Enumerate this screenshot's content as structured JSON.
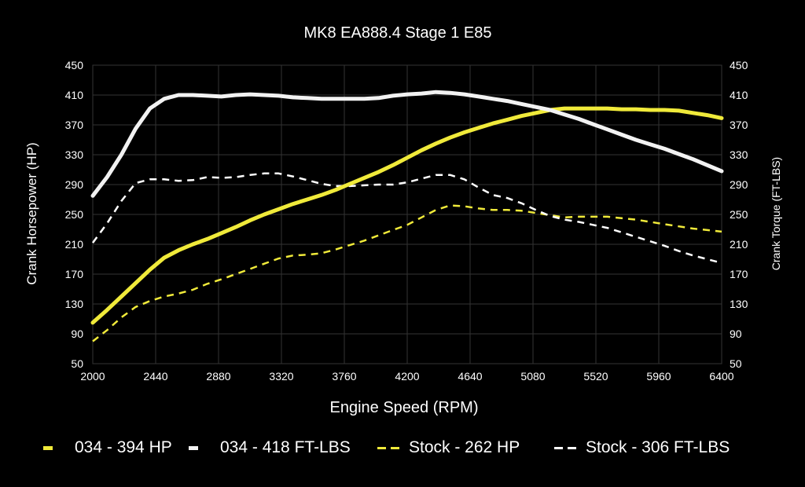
{
  "chart_data": {
    "type": "line",
    "title": "MK8 EA888.4 Stage 1 E85",
    "xlabel": "Engine Speed (RPM)",
    "ylabel": "Crank Horsepower (HP)",
    "y2label": "Crank Torque (FT-LBS)",
    "xlim": [
      2000,
      6400
    ],
    "ylim": [
      50,
      450
    ],
    "x_ticks": [
      2000,
      2440,
      2880,
      3320,
      3760,
      4200,
      4640,
      5080,
      5520,
      5960,
      6400
    ],
    "y_ticks": [
      50,
      90,
      130,
      170,
      210,
      250,
      290,
      330,
      370,
      410,
      450
    ],
    "grid": true,
    "legend_position": "bottom",
    "background": "#000000",
    "series": [
      {
        "name": "034 - 394 HP",
        "color": "#f0ea3a",
        "style": "solid",
        "width": 5,
        "points": [
          [
            2000,
            105
          ],
          [
            2100,
            122
          ],
          [
            2200,
            140
          ],
          [
            2300,
            158
          ],
          [
            2400,
            176
          ],
          [
            2500,
            192
          ],
          [
            2600,
            202
          ],
          [
            2700,
            210
          ],
          [
            2800,
            217
          ],
          [
            2900,
            225
          ],
          [
            3000,
            233
          ],
          [
            3100,
            242
          ],
          [
            3200,
            250
          ],
          [
            3300,
            257
          ],
          [
            3400,
            264
          ],
          [
            3500,
            270
          ],
          [
            3600,
            276
          ],
          [
            3700,
            283
          ],
          [
            3800,
            291
          ],
          [
            3900,
            299
          ],
          [
            4000,
            307
          ],
          [
            4100,
            316
          ],
          [
            4200,
            326
          ],
          [
            4300,
            336
          ],
          [
            4400,
            345
          ],
          [
            4500,
            353
          ],
          [
            4600,
            360
          ],
          [
            4700,
            366
          ],
          [
            4800,
            372
          ],
          [
            4900,
            377
          ],
          [
            5000,
            382
          ],
          [
            5100,
            386
          ],
          [
            5200,
            390
          ],
          [
            5300,
            392
          ],
          [
            5400,
            392
          ],
          [
            5500,
            392
          ],
          [
            5600,
            392
          ],
          [
            5700,
            391
          ],
          [
            5800,
            391
          ],
          [
            5900,
            390
          ],
          [
            6000,
            390
          ],
          [
            6100,
            389
          ],
          [
            6200,
            386
          ],
          [
            6300,
            383
          ],
          [
            6400,
            379
          ]
        ]
      },
      {
        "name": "034 - 418 FT-LBS",
        "color": "#f2f2f2",
        "style": "solid",
        "width": 5,
        "points": [
          [
            2000,
            275
          ],
          [
            2100,
            300
          ],
          [
            2200,
            330
          ],
          [
            2300,
            365
          ],
          [
            2400,
            392
          ],
          [
            2500,
            405
          ],
          [
            2600,
            410
          ],
          [
            2700,
            410
          ],
          [
            2800,
            409
          ],
          [
            2900,
            408
          ],
          [
            3000,
            410
          ],
          [
            3100,
            411
          ],
          [
            3200,
            410
          ],
          [
            3300,
            409
          ],
          [
            3400,
            407
          ],
          [
            3500,
            406
          ],
          [
            3600,
            405
          ],
          [
            3700,
            405
          ],
          [
            3800,
            405
          ],
          [
            3900,
            405
          ],
          [
            4000,
            406
          ],
          [
            4100,
            409
          ],
          [
            4200,
            411
          ],
          [
            4300,
            412
          ],
          [
            4400,
            414
          ],
          [
            4500,
            413
          ],
          [
            4600,
            411
          ],
          [
            4700,
            408
          ],
          [
            4800,
            405
          ],
          [
            4900,
            402
          ],
          [
            5000,
            398
          ],
          [
            5100,
            394
          ],
          [
            5200,
            390
          ],
          [
            5300,
            384
          ],
          [
            5400,
            378
          ],
          [
            5500,
            371
          ],
          [
            5600,
            364
          ],
          [
            5700,
            357
          ],
          [
            5800,
            350
          ],
          [
            5900,
            344
          ],
          [
            6000,
            338
          ],
          [
            6100,
            331
          ],
          [
            6200,
            324
          ],
          [
            6300,
            316
          ],
          [
            6400,
            308
          ]
        ]
      },
      {
        "name": "Stock - 262 HP",
        "color": "#f0ea3a",
        "style": "dashed",
        "width": 2.5,
        "points": [
          [
            2000,
            80
          ],
          [
            2100,
            95
          ],
          [
            2200,
            112
          ],
          [
            2300,
            126
          ],
          [
            2400,
            134
          ],
          [
            2500,
            140
          ],
          [
            2600,
            144
          ],
          [
            2700,
            149
          ],
          [
            2800,
            157
          ],
          [
            2900,
            163
          ],
          [
            3000,
            170
          ],
          [
            3100,
            177
          ],
          [
            3200,
            184
          ],
          [
            3300,
            191
          ],
          [
            3400,
            195
          ],
          [
            3500,
            196
          ],
          [
            3600,
            198
          ],
          [
            3700,
            203
          ],
          [
            3800,
            209
          ],
          [
            3900,
            215
          ],
          [
            4000,
            222
          ],
          [
            4100,
            229
          ],
          [
            4200,
            236
          ],
          [
            4300,
            246
          ],
          [
            4400,
            256
          ],
          [
            4500,
            262
          ],
          [
            4600,
            261
          ],
          [
            4700,
            258
          ],
          [
            4800,
            256
          ],
          [
            4900,
            256
          ],
          [
            5000,
            255
          ],
          [
            5100,
            252
          ],
          [
            5200,
            249
          ],
          [
            5300,
            246
          ],
          [
            5400,
            247
          ],
          [
            5500,
            247
          ],
          [
            5600,
            247
          ],
          [
            5700,
            245
          ],
          [
            5800,
            243
          ],
          [
            5900,
            240
          ],
          [
            6000,
            237
          ],
          [
            6100,
            234
          ],
          [
            6200,
            231
          ],
          [
            6300,
            229
          ],
          [
            6400,
            227
          ]
        ]
      },
      {
        "name": "Stock - 306 FT-LBS",
        "color": "#ffffff",
        "style": "dashed",
        "width": 2.5,
        "points": [
          [
            2000,
            212
          ],
          [
            2100,
            238
          ],
          [
            2200,
            268
          ],
          [
            2300,
            292
          ],
          [
            2400,
            297
          ],
          [
            2500,
            297
          ],
          [
            2600,
            295
          ],
          [
            2700,
            296
          ],
          [
            2800,
            300
          ],
          [
            2900,
            299
          ],
          [
            3000,
            300
          ],
          [
            3100,
            303
          ],
          [
            3200,
            305
          ],
          [
            3300,
            305
          ],
          [
            3400,
            301
          ],
          [
            3500,
            296
          ],
          [
            3600,
            291
          ],
          [
            3700,
            288
          ],
          [
            3800,
            288
          ],
          [
            3900,
            289
          ],
          [
            4000,
            290
          ],
          [
            4100,
            290
          ],
          [
            4200,
            293
          ],
          [
            4300,
            298
          ],
          [
            4400,
            303
          ],
          [
            4500,
            303
          ],
          [
            4600,
            297
          ],
          [
            4700,
            286
          ],
          [
            4800,
            276
          ],
          [
            4900,
            272
          ],
          [
            5000,
            265
          ],
          [
            5100,
            256
          ],
          [
            5200,
            248
          ],
          [
            5300,
            243
          ],
          [
            5400,
            240
          ],
          [
            5500,
            236
          ],
          [
            5600,
            232
          ],
          [
            5700,
            226
          ],
          [
            5800,
            220
          ],
          [
            5900,
            214
          ],
          [
            6000,
            208
          ],
          [
            6100,
            201
          ],
          [
            6200,
            195
          ],
          [
            6300,
            190
          ],
          [
            6400,
            185
          ]
        ]
      }
    ]
  }
}
